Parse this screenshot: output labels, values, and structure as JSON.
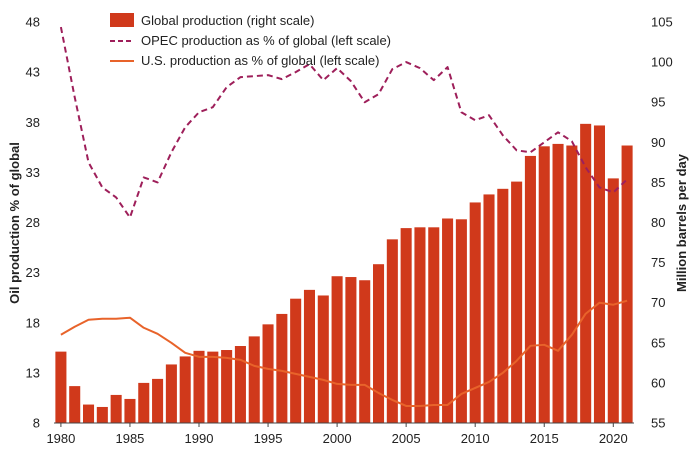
{
  "chart_data": {
    "type": "bar",
    "x": [
      1980,
      1981,
      1982,
      1983,
      1984,
      1985,
      1986,
      1987,
      1988,
      1989,
      1990,
      1991,
      1992,
      1993,
      1994,
      1995,
      1996,
      1997,
      1998,
      1999,
      2000,
      2001,
      2002,
      2003,
      2004,
      2005,
      2006,
      2007,
      2008,
      2009,
      2010,
      2011,
      2012,
      2013,
      2014,
      2015,
      2016,
      2017,
      2018,
      2019,
      2020,
      2021
    ],
    "x_ticks": [
      "1980",
      "1985",
      "1990",
      "1995",
      "2000",
      "2005",
      "2010",
      "2015",
      "2020"
    ],
    "left_axis": {
      "label": "Oil production % of global",
      "ylim": [
        8,
        48
      ],
      "ticks": [
        "8",
        "13",
        "18",
        "23",
        "28",
        "33",
        "38",
        "43",
        "48"
      ]
    },
    "right_axis": {
      "label": "Million barrels per day",
      "ylim": [
        55,
        105
      ],
      "ticks": [
        "55",
        "60",
        "65",
        "70",
        "75",
        "80",
        "85",
        "90",
        "95",
        "100",
        "105"
      ]
    },
    "series": [
      {
        "name": "Global production (right scale)",
        "kind": "bar",
        "axis": "right",
        "color": "#d0391b",
        "values": [
          63.9,
          59.6,
          57.3,
          57.0,
          58.5,
          58.0,
          60.0,
          60.5,
          62.3,
          63.3,
          64.0,
          63.9,
          64.1,
          64.6,
          65.8,
          67.3,
          68.6,
          70.5,
          71.6,
          70.9,
          73.3,
          73.2,
          72.8,
          74.8,
          77.9,
          79.3,
          79.4,
          79.4,
          80.5,
          80.4,
          82.5,
          83.5,
          84.2,
          85.1,
          88.3,
          89.5,
          89.8,
          89.6,
          92.3,
          92.1,
          85.5,
          89.6
        ]
      },
      {
        "name": "OPEC production as % of global (left scale)",
        "kind": "line",
        "style": "dashed",
        "axis": "left",
        "color": "#9e1f5a",
        "values": [
          47.5,
          40.5,
          34.0,
          31.5,
          30.5,
          28.5,
          32.5,
          32.0,
          35.0,
          37.5,
          39.0,
          39.5,
          41.5,
          42.5,
          42.6,
          42.7,
          42.3,
          43.0,
          43.8,
          42.2,
          43.4,
          42.1,
          40.0,
          40.8,
          43.3,
          44.0,
          43.4,
          42.2,
          43.5,
          39.0,
          38.2,
          38.7,
          36.7,
          35.2,
          35.0,
          36.0,
          37.0,
          36.1,
          33.5,
          31.5,
          31.0,
          32.3
        ]
      },
      {
        "name": "U.S. production as % of global (left scale)",
        "kind": "line",
        "style": "solid",
        "axis": "left",
        "color": "#e8632a",
        "values": [
          16.8,
          17.6,
          18.3,
          18.4,
          18.4,
          18.5,
          17.5,
          16.9,
          16.0,
          15.0,
          14.6,
          14.6,
          14.5,
          14.3,
          13.7,
          13.4,
          13.2,
          12.9,
          12.6,
          12.3,
          11.9,
          11.8,
          11.8,
          11.0,
          10.3,
          9.7,
          9.7,
          9.8,
          9.8,
          10.9,
          11.5,
          12.1,
          13.0,
          14.2,
          15.7,
          15.8,
          15.2,
          16.8,
          18.9,
          20.0,
          19.8,
          20.2
        ]
      }
    ]
  }
}
